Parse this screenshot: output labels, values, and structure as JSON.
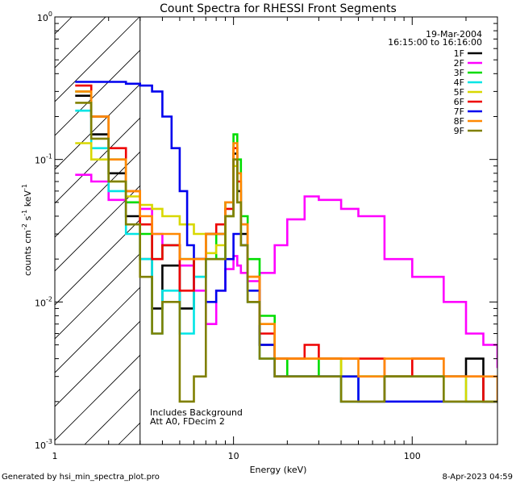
{
  "chart_data": {
    "type": "line",
    "title": "Count Spectra for RHESSI Front Segments",
    "xlabel": "Energy (keV)",
    "ylabel_main": "counts cm",
    "ylabel_parts": [
      "counts cm",
      "-2",
      " s",
      "-1",
      " keV",
      "-1"
    ],
    "x_scale": "log",
    "y_scale": "log",
    "xlim": [
      1,
      300
    ],
    "ylim": [
      0.001,
      1
    ],
    "x_ticks": [
      {
        "value": 1,
        "label": "1"
      },
      {
        "value": 10,
        "label": "10"
      },
      {
        "value": 100,
        "label": "100"
      }
    ],
    "y_ticks": [
      {
        "value": 0.001,
        "base": "10",
        "exp": "-3"
      },
      {
        "value": 0.01,
        "base": "10",
        "exp": "-2"
      },
      {
        "value": 0.1,
        "base": "10",
        "exp": "-1"
      },
      {
        "value": 1,
        "base": "10",
        "exp": "0"
      }
    ],
    "hatch_region": {
      "from": 1,
      "to": 3
    },
    "date": "19-Mar-2004",
    "time_range": "16:15:00 to 16:16:00",
    "annotations": [
      "Includes Background",
      "Att A0, FDecim 2"
    ],
    "footer_left": "Generated by hsi_min_spectra_plot.pro",
    "footer_right": "8-Apr-2023 04:59",
    "series": [
      {
        "name": "1F",
        "color": "#000000",
        "x": [
          1.3,
          1.6,
          2.0,
          2.5,
          3.0,
          3.5,
          4.0,
          5.0,
          6.0,
          7.0,
          8.0,
          9.0,
          10.0,
          10.5,
          11.0,
          12.0,
          14.0,
          17.0,
          20.0,
          25.0,
          30.0,
          40.0,
          50.0,
          70.0,
          100.0,
          150.0,
          200.0,
          250.0,
          300.0
        ],
        "y": [
          0.28,
          0.15,
          0.08,
          0.04,
          0.02,
          0.009,
          0.018,
          0.009,
          0.02,
          0.03,
          0.03,
          0.04,
          0.11,
          0.06,
          0.03,
          0.01,
          0.005,
          0.003,
          0.003,
          0.003,
          0.003,
          0.002,
          0.002,
          0.003,
          0.003,
          0.003,
          0.004,
          0.002,
          0.002
        ]
      },
      {
        "name": "2F",
        "color": "#ff00ff",
        "x": [
          1.3,
          1.6,
          2.0,
          2.5,
          3.0,
          3.5,
          4.0,
          5.0,
          6.0,
          7.0,
          8.0,
          9.0,
          10.0,
          10.5,
          11.0,
          12.0,
          14.0,
          17.0,
          20.0,
          25.0,
          30.0,
          40.0,
          50.0,
          70.0,
          100.0,
          150.0,
          200.0,
          250.0,
          300.0
        ],
        "y": [
          0.078,
          0.07,
          0.052,
          0.05,
          0.045,
          0.03,
          0.025,
          0.018,
          0.012,
          0.007,
          0.012,
          0.017,
          0.021,
          0.018,
          0.016,
          0.014,
          0.016,
          0.025,
          0.038,
          0.055,
          0.052,
          0.045,
          0.04,
          0.02,
          0.015,
          0.01,
          0.006,
          0.005,
          0.0035
        ]
      },
      {
        "name": "3F",
        "color": "#00dd00",
        "x": [
          1.3,
          1.6,
          2.0,
          2.5,
          3.0,
          3.5,
          4.0,
          5.0,
          6.0,
          7.0,
          8.0,
          9.0,
          10.0,
          10.5,
          11.0,
          12.0,
          14.0,
          17.0,
          20.0,
          25.0,
          30.0,
          40.0,
          50.0,
          70.0,
          100.0,
          150.0,
          200.0,
          250.0,
          300.0
        ],
        "y": [
          0.3,
          0.2,
          0.1,
          0.05,
          0.03,
          0.02,
          0.025,
          0.02,
          0.015,
          0.03,
          0.02,
          0.05,
          0.15,
          0.1,
          0.04,
          0.02,
          0.008,
          0.004,
          0.003,
          0.003,
          0.004,
          0.003,
          0.003,
          0.003,
          0.003,
          0.002,
          0.002,
          0.002,
          0.002
        ]
      },
      {
        "name": "4F",
        "color": "#00e5e5",
        "x": [
          1.3,
          1.6,
          2.0,
          2.5,
          3.0,
          3.5,
          4.0,
          5.0,
          6.0,
          7.0,
          8.0,
          9.0,
          10.0,
          10.5,
          11.0,
          12.0,
          14.0,
          17.0,
          20.0,
          25.0,
          30.0,
          40.0,
          50.0,
          70.0,
          100.0,
          150.0,
          200.0,
          250.0,
          300.0
        ],
        "y": [
          0.22,
          0.12,
          0.06,
          0.03,
          0.02,
          0.006,
          0.012,
          0.006,
          0.015,
          0.02,
          0.02,
          0.04,
          0.1,
          0.05,
          0.025,
          0.01,
          0.004,
          0.003,
          0.003,
          0.003,
          0.003,
          0.002,
          0.003,
          0.003,
          0.003,
          0.003,
          0.002,
          0.002,
          0.002
        ]
      },
      {
        "name": "5F",
        "color": "#d8d800",
        "x": [
          1.3,
          1.6,
          2.0,
          2.5,
          3.0,
          3.5,
          4.0,
          5.0,
          6.0,
          7.0,
          8.0,
          9.0,
          10.0,
          10.5,
          11.0,
          12.0,
          14.0,
          17.0,
          20.0,
          25.0,
          30.0,
          40.0,
          50.0,
          70.0,
          100.0,
          150.0,
          200.0,
          250.0,
          300.0
        ],
        "y": [
          0.13,
          0.1,
          0.07,
          0.055,
          0.048,
          0.045,
          0.04,
          0.035,
          0.03,
          0.022,
          0.025,
          0.04,
          0.09,
          0.05,
          0.025,
          0.015,
          0.007,
          0.004,
          0.004,
          0.004,
          0.004,
          0.003,
          0.003,
          0.003,
          0.003,
          0.003,
          0.002,
          0.002,
          0.002
        ]
      },
      {
        "name": "6F",
        "color": "#ee0000",
        "x": [
          1.3,
          1.6,
          2.0,
          2.5,
          3.0,
          3.5,
          4.0,
          5.0,
          6.0,
          7.0,
          8.0,
          9.0,
          10.0,
          10.5,
          11.0,
          12.0,
          14.0,
          17.0,
          20.0,
          25.0,
          30.0,
          40.0,
          50.0,
          70.0,
          100.0,
          150.0,
          200.0,
          250.0,
          300.0
        ],
        "y": [
          0.33,
          0.2,
          0.12,
          0.06,
          0.035,
          0.02,
          0.025,
          0.012,
          0.02,
          0.03,
          0.035,
          0.045,
          0.12,
          0.07,
          0.035,
          0.015,
          0.006,
          0.004,
          0.004,
          0.005,
          0.004,
          0.004,
          0.004,
          0.003,
          0.004,
          0.003,
          0.003,
          0.002,
          0.002
        ]
      },
      {
        "name": "7F",
        "color": "#0000ee",
        "x": [
          1.3,
          1.6,
          2.0,
          2.5,
          3.0,
          3.5,
          4.0,
          4.5,
          5.0,
          5.5,
          6.0,
          7.0,
          8.0,
          9.0,
          10.0,
          10.5,
          11.0,
          12.0,
          14.0,
          17.0,
          20.0,
          25.0,
          30.0,
          40.0,
          50.0,
          70.0,
          100.0,
          150.0,
          200.0,
          250.0,
          300.0
        ],
        "y": [
          0.35,
          0.35,
          0.35,
          0.34,
          0.33,
          0.3,
          0.2,
          0.12,
          0.06,
          0.025,
          0.02,
          0.01,
          0.012,
          0.02,
          0.03,
          0.03,
          0.025,
          0.012,
          0.005,
          0.003,
          0.003,
          0.003,
          0.003,
          0.003,
          0.002,
          0.002,
          0.002,
          0.002,
          0.002,
          0.002,
          0.002
        ]
      },
      {
        "name": "8F",
        "color": "#ff8800",
        "x": [
          1.3,
          1.6,
          2.0,
          2.5,
          3.0,
          3.5,
          4.0,
          5.0,
          6.0,
          7.0,
          8.0,
          9.0,
          10.0,
          10.5,
          11.0,
          12.0,
          14.0,
          17.0,
          20.0,
          25.0,
          30.0,
          40.0,
          50.0,
          70.0,
          100.0,
          150.0,
          200.0,
          250.0,
          300.0
        ],
        "y": [
          0.3,
          0.2,
          0.1,
          0.06,
          0.04,
          0.03,
          0.03,
          0.02,
          0.02,
          0.03,
          0.03,
          0.05,
          0.13,
          0.08,
          0.035,
          0.015,
          0.007,
          0.004,
          0.004,
          0.004,
          0.004,
          0.004,
          0.003,
          0.004,
          0.004,
          0.003,
          0.003,
          0.003,
          0.002
        ]
      },
      {
        "name": "9F",
        "color": "#808000",
        "x": [
          1.3,
          1.6,
          2.0,
          2.5,
          3.0,
          3.5,
          4.0,
          5.0,
          6.0,
          7.0,
          8.0,
          9.0,
          10.0,
          10.5,
          11.0,
          12.0,
          14.0,
          17.0,
          20.0,
          25.0,
          30.0,
          40.0,
          50.0,
          70.0,
          100.0,
          150.0,
          200.0,
          250.0,
          300.0
        ],
        "y": [
          0.25,
          0.14,
          0.07,
          0.035,
          0.015,
          0.006,
          0.01,
          0.002,
          0.003,
          0.02,
          0.02,
          0.04,
          0.1,
          0.05,
          0.025,
          0.01,
          0.004,
          0.003,
          0.003,
          0.003,
          0.003,
          0.002,
          0.002,
          0.003,
          0.003,
          0.002,
          0.002,
          0.002,
          0.002
        ]
      }
    ]
  }
}
